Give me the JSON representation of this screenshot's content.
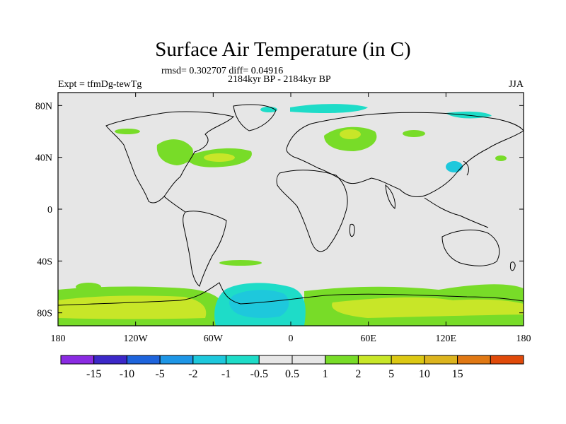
{
  "title": "Surface Air Temperature (in C)",
  "stats_line": "rmsd= 0.302707 diff= 0.04916",
  "subtitle": "2184kyr BP - 2184kyr BP",
  "left_label": "Expt = tfmDg-tewTg",
  "right_label": "JJA",
  "x_ticks": [
    "180",
    "120W",
    "60W",
    "0",
    "60E",
    "120E",
    "180"
  ],
  "y_ticks": [
    "80N",
    "40N",
    "0",
    "40S",
    "80S"
  ],
  "colorbar": {
    "colors": [
      "#8a2be2",
      "#3c28c8",
      "#1e64dc",
      "#1e96e6",
      "#1ec8dc",
      "#1edcc8",
      "#e6e6e6",
      "#e6e6e6",
      "#78dc28",
      "#c8e628",
      "#dcc814",
      "#dcb41e",
      "#e07814",
      "#e04a0a"
    ],
    "labels": [
      "-15",
      "-10",
      "-5",
      "-2",
      "-1",
      "-0.5",
      "0.5",
      "1",
      "2",
      "5",
      "10",
      "15"
    ]
  },
  "colors": {
    "ocean_background": "#e6e6e6",
    "coast": "#000000"
  }
}
